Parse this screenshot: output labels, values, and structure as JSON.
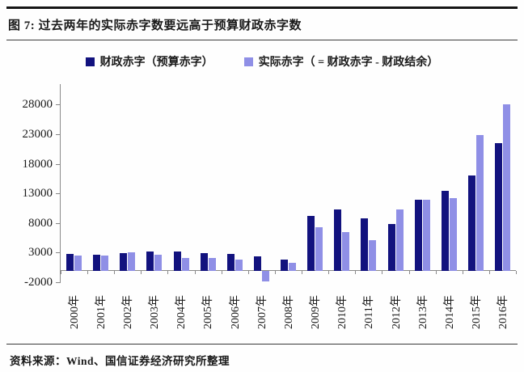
{
  "header": {
    "title": "图 7:  过去两年的实际赤字数要远高于预算财政赤字数"
  },
  "legend": {
    "items": [
      {
        "label": "财政赤字（预算赤字）",
        "color": "#12127e"
      },
      {
        "label": "实际赤字（ = 财政赤字 - 财政结余）",
        "color": "#8f8fe6"
      }
    ]
  },
  "footer": {
    "source": "资料来源：Wind、国信证券经济研究所整理"
  },
  "chart_data": {
    "type": "bar",
    "categories": [
      "2000年",
      "2001年",
      "2002年",
      "2003年",
      "2004年",
      "2005年",
      "2006年",
      "2007年",
      "2008年",
      "2009年",
      "2010年",
      "2011年",
      "2012年",
      "2013年",
      "2014年",
      "2015年",
      "2016年"
    ],
    "series": [
      {
        "name": "财政赤字（预算赤字）",
        "color": "#12127e",
        "values": [
          2900,
          2800,
          3100,
          3300,
          3300,
          3000,
          2950,
          2550,
          1950,
          9350,
          10450,
          8900,
          8000,
          12050,
          13550,
          16200,
          21650
        ]
      },
      {
        "name": "实际赤字（ = 财政赤字 - 财政结余）",
        "color": "#8f8fe6",
        "values": [
          2700,
          2600,
          3150,
          2850,
          2200,
          2200,
          1900,
          -1750,
          1400,
          7450,
          6550,
          5200,
          10450,
          12050,
          12350,
          23000,
          28200
        ]
      }
    ],
    "yticks": [
      -2000,
      3000,
      8000,
      13000,
      18000,
      23000,
      28000
    ],
    "ylim": [
      -2000,
      31600
    ],
    "xlabel": "",
    "ylabel": "",
    "grid": false,
    "legend_position": "top",
    "bar_orientation": "vertical"
  }
}
